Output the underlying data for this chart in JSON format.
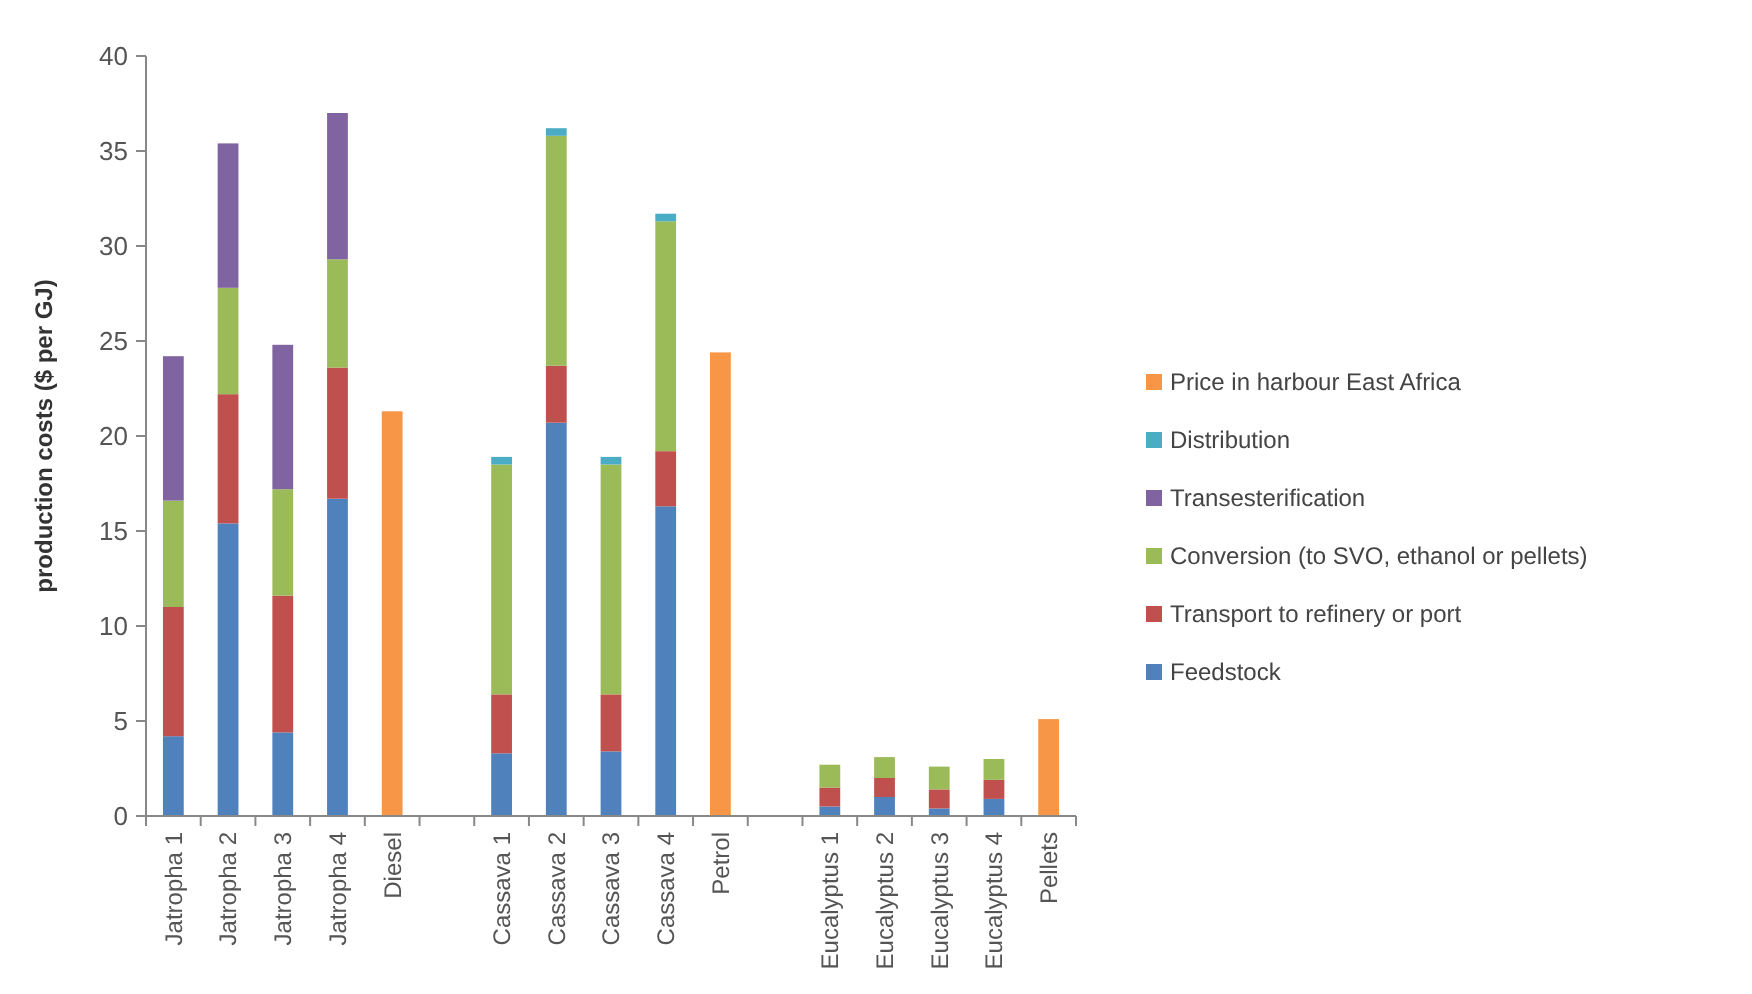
{
  "chart_data": {
    "type": "bar",
    "stacked": true,
    "ylabel": "production costs ($ per GJ)",
    "categories": [
      "Jatropha 1",
      "Jatropha 2",
      "Jatropha 3",
      "Jatropha 4",
      "Diesel",
      null,
      "Cassava 1",
      "Cassava 2",
      "Cassava 3",
      "Cassava 4",
      "Petrol",
      null,
      "Eucalyptus 1",
      "Eucalyptus 2",
      "Eucalyptus 3",
      "Eucalyptus 4",
      "Pellets"
    ],
    "series": [
      {
        "name": "Feedstock",
        "color": "#4f81bd",
        "values": [
          4.2,
          15.4,
          4.4,
          16.7,
          null,
          null,
          3.3,
          20.7,
          3.4,
          16.3,
          null,
          null,
          0.5,
          1.0,
          0.4,
          0.9,
          null
        ]
      },
      {
        "name": "Transport to refinery or port",
        "color": "#c0504d",
        "values": [
          6.8,
          6.8,
          7.2,
          6.9,
          null,
          null,
          3.1,
          3.0,
          3.0,
          2.9,
          null,
          null,
          1.0,
          1.0,
          1.0,
          1.0,
          null
        ]
      },
      {
        "name": "Conversion (to SVO, ethanol or pellets)",
        "color": "#9bbb59",
        "values": [
          5.6,
          5.6,
          5.6,
          5.7,
          null,
          null,
          12.1,
          12.1,
          12.1,
          12.1,
          null,
          null,
          1.2,
          1.1,
          1.2,
          1.1,
          null
        ]
      },
      {
        "name": "Transesterification",
        "color": "#8064a2",
        "values": [
          7.6,
          7.6,
          7.6,
          7.7,
          null,
          null,
          null,
          null,
          null,
          null,
          null,
          null,
          null,
          null,
          null,
          null,
          null
        ]
      },
      {
        "name": "Distribution",
        "color": "#4bacc6",
        "values": [
          null,
          null,
          null,
          null,
          null,
          null,
          0.4,
          0.4,
          0.4,
          0.4,
          null,
          null,
          null,
          null,
          null,
          null,
          null
        ]
      },
      {
        "name": "Price in harbour East Africa",
        "color": "#f79646",
        "values": [
          null,
          null,
          null,
          null,
          21.3,
          null,
          null,
          null,
          null,
          null,
          24.4,
          null,
          null,
          null,
          null,
          null,
          5.1
        ]
      }
    ],
    "ylim": [
      0,
      40
    ],
    "yticks": [
      0,
      5,
      10,
      15,
      20,
      25,
      30,
      35,
      40
    ],
    "grid": false,
    "legend": "right"
  }
}
